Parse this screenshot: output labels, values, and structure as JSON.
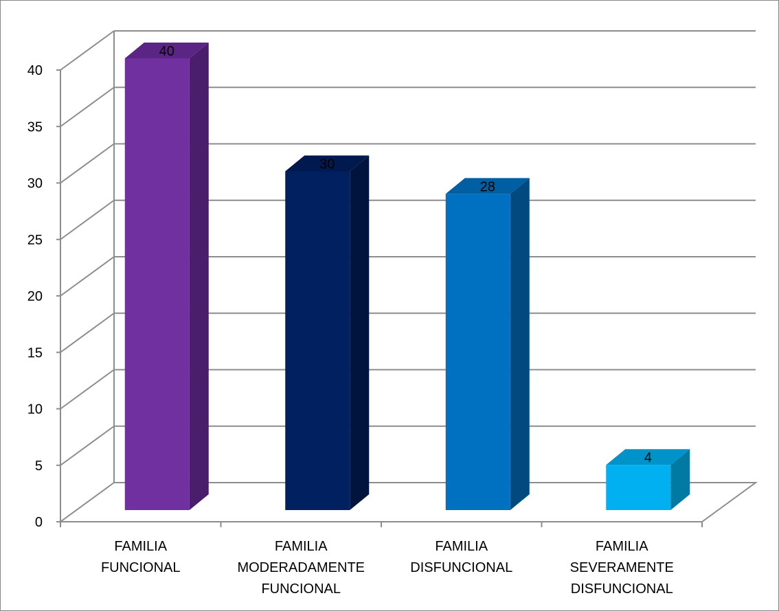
{
  "chart_data": {
    "type": "bar",
    "style": "3d-column",
    "categories": [
      [
        "FAMILIA",
        "FUNCIONAL"
      ],
      [
        "FAMILIA",
        "MODERADAMENTE",
        "FUNCIONAL"
      ],
      [
        "FAMILIA",
        "DISFUNCIONAL"
      ],
      [
        "FAMILIA",
        "SEVERAMENTE",
        "DISFUNCIONAL"
      ]
    ],
    "values": [
      40,
      30,
      28,
      4
    ],
    "data_labels": [
      "40",
      "30",
      "28",
      "4"
    ],
    "y_ticks": [
      "0",
      "5",
      "10",
      "15",
      "20",
      "25",
      "30",
      "35",
      "40"
    ],
    "ylim": [
      0,
      40
    ],
    "grid": true,
    "legend": "none",
    "colors": {
      "bars": [
        {
          "front": "#7030a0",
          "side": "#4a1e6b",
          "top": "#5a2585"
        },
        {
          "front": "#002060",
          "side": "#00143d",
          "top": "#001a4f"
        },
        {
          "front": "#0070c0",
          "side": "#004a80",
          "top": "#005ea3"
        },
        {
          "front": "#00b0f0",
          "side": "#0079a3",
          "top": "#0093c9"
        }
      ],
      "grid": "#8c8c8c",
      "frame": "#868686"
    }
  }
}
